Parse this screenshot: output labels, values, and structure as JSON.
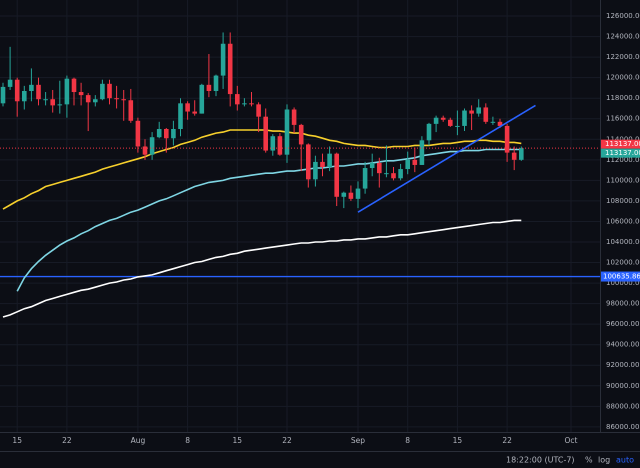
{
  "chart_data": {
    "type": "candlestick",
    "categories": [
      null,
      null,
      "15",
      null,
      null,
      null,
      null,
      null,
      null,
      "22",
      null,
      null,
      null,
      null,
      null,
      null,
      null,
      null,
      null,
      "Aug",
      null,
      null,
      null,
      null,
      null,
      null,
      "8",
      null,
      null,
      null,
      null,
      null,
      null,
      "15",
      null,
      null,
      null,
      null,
      null,
      null,
      "22",
      null,
      null,
      null,
      null,
      null,
      null,
      null,
      null,
      null,
      "Sep",
      null,
      null,
      null,
      null,
      null,
      null,
      "8",
      null,
      null,
      null,
      null,
      null,
      null,
      "15",
      null,
      null,
      null,
      null,
      null,
      null,
      "22",
      null,
      null,
      null,
      null,
      null,
      null,
      null,
      null,
      "Oct",
      null
    ],
    "open": [
      117500,
      119100,
      119800,
      117700,
      118700,
      119300,
      117900,
      117900,
      117300,
      117400,
      119900,
      118600,
      118300,
      117600,
      117900,
      119400,
      118000,
      117900,
      117800,
      115800,
      113300,
      112500,
      114200,
      115000,
      114100,
      115000,
      117500,
      116700,
      116500,
      119300,
      118700,
      120200,
      123300,
      118400,
      117400,
      117500,
      117400,
      116200,
      112900,
      114300,
      112500,
      116900,
      115400,
      113500,
      110100,
      111800,
      111300,
      112600,
      108400,
      108800,
      108200,
      109200,
      111200,
      111700,
      110700,
      110700,
      110200,
      111100,
      112000,
      111500,
      113900,
      115500,
      116100,
      115900,
      115300,
      115300,
      116800,
      116500,
      117100,
      115700,
      115700,
      115300,
      112700,
      112000,
      null,
      null,
      null,
      null,
      null,
      null,
      null,
      null
    ],
    "high": [
      119500,
      123000,
      120000,
      119200,
      120900,
      120000,
      118600,
      118800,
      119700,
      120200,
      120000,
      119500,
      118500,
      118300,
      119800,
      119800,
      119200,
      118800,
      118900,
      116100,
      114000,
      114700,
      115700,
      115100,
      115800,
      118000,
      117700,
      117800,
      119400,
      122300,
      120300,
      124400,
      124400,
      119200,
      118000,
      118600,
      117600,
      117000,
      114500,
      114600,
      117400,
      117100,
      115500,
      113600,
      112400,
      112600,
      113300,
      112700,
      108900,
      109500,
      109900,
      111800,
      112600,
      112200,
      113400,
      111300,
      111600,
      112800,
      113200,
      114300,
      115600,
      116300,
      116300,
      116100,
      116800,
      117000,
      117300,
      117900,
      117500,
      116200,
      116000,
      115500,
      113300,
      113300,
      null,
      null,
      null,
      null,
      null,
      null,
      null,
      null
    ],
    "low": [
      117200,
      118800,
      116200,
      116900,
      117700,
      117300,
      117300,
      116600,
      116500,
      116100,
      117300,
      117300,
      114800,
      117200,
      117800,
      117400,
      117000,
      115800,
      115600,
      112700,
      112000,
      112000,
      114100,
      112700,
      113400,
      114300,
      115900,
      116300,
      116500,
      118100,
      118200,
      118900,
      117200,
      116800,
      117200,
      117200,
      114700,
      112700,
      112400,
      112400,
      111700,
      114600,
      110900,
      109300,
      109400,
      110400,
      110900,
      107500,
      107300,
      108000,
      107300,
      108700,
      110400,
      109300,
      110300,
      110000,
      110000,
      110600,
      110800,
      111500,
      113400,
      114700,
      115700,
      115200,
      114400,
      114800,
      114900,
      116200,
      115500,
      115400,
      115100,
      111800,
      111000,
      111900,
      null,
      null,
      null,
      null,
      null,
      null,
      null,
      null
    ],
    "close": [
      119100,
      119800,
      117700,
      118700,
      119300,
      117900,
      117900,
      117300,
      117400,
      119900,
      118600,
      118300,
      117600,
      117900,
      119400,
      118000,
      117900,
      117800,
      115800,
      113300,
      112500,
      114200,
      115000,
      114100,
      115000,
      117500,
      116700,
      116500,
      119300,
      118700,
      120200,
      123300,
      118400,
      117400,
      117500,
      117400,
      116200,
      112900,
      114300,
      112500,
      116900,
      115400,
      113500,
      110100,
      111800,
      111300,
      112600,
      108400,
      108800,
      108200,
      109200,
      111200,
      111700,
      110700,
      110700,
      110200,
      111100,
      112000,
      111500,
      113900,
      115500,
      116100,
      115900,
      115300,
      115300,
      116800,
      116500,
      117100,
      115700,
      115700,
      115300,
      112700,
      112000,
      113137,
      null,
      null,
      null,
      null,
      null,
      null,
      null,
      null
    ],
    "up_color": "#26a69a",
    "down_color": "#f23645",
    "lines": [
      {
        "color": "#f7d02c",
        "values": [
          107200,
          107600,
          108000,
          108300,
          108700,
          109000,
          109400,
          109600,
          109800,
          110000,
          110200,
          110400,
          110600,
          110800,
          111100,
          111300,
          111500,
          111700,
          111900,
          112100,
          112300,
          112600,
          112800,
          113000,
          113200,
          113500,
          113700,
          113900,
          114200,
          114400,
          114600,
          114700,
          114900,
          114900,
          114900,
          114900,
          114900,
          114900,
          114800,
          114800,
          114700,
          114600,
          114600,
          114400,
          114300,
          114100,
          113900,
          113800,
          113600,
          113500,
          113400,
          113400,
          113300,
          113200,
          113200,
          113300,
          113300,
          113300,
          113400,
          113400,
          113400,
          113500,
          113600,
          113600,
          113700,
          113800,
          113800,
          113900,
          113900,
          113800,
          113800,
          113700,
          113700,
          113600,
          null,
          null,
          null,
          null,
          null,
          null,
          null,
          null
        ]
      },
      {
        "color": "#7fd6e4",
        "values": [
          null,
          null,
          99200,
          100500,
          101400,
          102100,
          102700,
          103200,
          103700,
          104100,
          104400,
          104800,
          105100,
          105500,
          105800,
          106100,
          106300,
          106600,
          106900,
          107100,
          107400,
          107700,
          108000,
          108200,
          108500,
          108800,
          109100,
          109400,
          109600,
          109800,
          109900,
          110000,
          110200,
          110300,
          110400,
          110500,
          110600,
          110700,
          110700,
          110800,
          110900,
          110900,
          111000,
          111100,
          111200,
          111200,
          111300,
          111400,
          111400,
          111500,
          111600,
          111600,
          111700,
          111800,
          111900,
          111900,
          112000,
          112100,
          112200,
          112400,
          112500,
          112600,
          112700,
          112800,
          112800,
          112900,
          112900,
          112900,
          113000,
          113000,
          113000,
          113000,
          113000,
          113000,
          null,
          null,
          null,
          null,
          null,
          null,
          null,
          null
        ]
      },
      {
        "color": "#ffffff",
        "values": [
          96700,
          96900,
          97200,
          97500,
          97700,
          98000,
          98300,
          98500,
          98700,
          98900,
          99100,
          99300,
          99400,
          99600,
          99800,
          100000,
          100100,
          100300,
          100400,
          100600,
          100700,
          100800,
          101000,
          101200,
          101400,
          101600,
          101800,
          102000,
          102100,
          102300,
          102500,
          102600,
          102800,
          102900,
          103100,
          103200,
          103300,
          103400,
          103500,
          103600,
          103700,
          103800,
          103900,
          103900,
          104000,
          104000,
          104100,
          104100,
          104200,
          104200,
          104300,
          104300,
          104400,
          104500,
          104500,
          104600,
          104700,
          104700,
          104800,
          104900,
          105000,
          105100,
          105200,
          105300,
          105400,
          105500,
          105600,
          105700,
          105800,
          105900,
          105900,
          106000,
          106100,
          106100,
          null,
          null,
          null,
          null,
          null,
          null,
          null,
          null
        ]
      }
    ],
    "trendline": {
      "color": "#2962ff",
      "x": [
        50,
        75
      ],
      "y": [
        106900,
        117300
      ]
    },
    "hlines": [
      {
        "value": 100635.86,
        "color": "#2962ff"
      }
    ],
    "price_labels": [
      {
        "value": 113137,
        "label": "113137.00",
        "color": "#f23645"
      },
      {
        "value": 113137,
        "label": "113137.00",
        "color": "#26a69a"
      }
    ],
    "ylim": [
      85500,
      127560
    ],
    "yticks": [
      {
        "value": 86000,
        "label": "86000.00"
      },
      {
        "value": 88000,
        "label": "88000.00"
      },
      {
        "value": 90000,
        "label": "90000.00"
      },
      {
        "value": 92000,
        "label": "92000.00"
      },
      {
        "value": 94000,
        "label": "94000.00"
      },
      {
        "value": 96000,
        "label": "96000.00"
      },
      {
        "value": 98000,
        "label": "98000.00"
      },
      {
        "value": 100000,
        "label": "100000.00"
      },
      {
        "value": 102000,
        "label": "102000.00"
      },
      {
        "value": 104000,
        "label": "104000.00"
      },
      {
        "value": 106000,
        "label": "106000.00"
      },
      {
        "value": 108000,
        "label": "108000.00"
      },
      {
        "value": 110000,
        "label": "110000.00"
      },
      {
        "value": 112000,
        "label": "112000.00"
      },
      {
        "value": 114000,
        "label": "114000.00"
      },
      {
        "value": 116000,
        "label": "116000.00"
      },
      {
        "value": 118000,
        "label": "118000.00"
      },
      {
        "value": 120000,
        "label": "120000.00"
      },
      {
        "value": 122000,
        "label": "122000.00"
      },
      {
        "value": 124000,
        "label": "124000.00"
      },
      {
        "value": 126000,
        "label": "126000.00"
      }
    ],
    "grid": true
  },
  "toolbar": {
    "time": "18:22:00 (UTC-7)",
    "percent": "%",
    "log": "log",
    "auto": "auto"
  }
}
